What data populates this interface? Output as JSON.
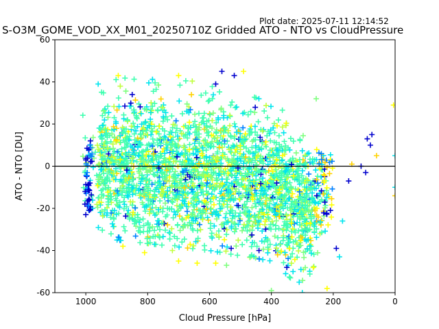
{
  "plot_date": "Plot date: 2025-07-11 12:14:52",
  "title": "S-O3M_GOME_VOD_XX_M01_20250710Z Gridded ATO - NTO vs CloudPressure",
  "chart_data": {
    "type": "scatter",
    "marker": "+",
    "xlabel": "Cloud Pressure [hPa]",
    "ylabel": "ATO - NTO [DU]",
    "xlim": [
      1100,
      0
    ],
    "ylim": [
      -60,
      60
    ],
    "x_inverted": true,
    "xticks": [
      1000,
      800,
      600,
      400,
      200,
      0
    ],
    "yticks": [
      -60,
      -40,
      -20,
      0,
      20,
      40,
      60
    ],
    "zero_line": 0,
    "grid": false,
    "colormap": [
      "#0000cd",
      "#0080ff",
      "#00e5ee",
      "#40ffb0",
      "#7fff7f",
      "#c0ff3f",
      "#ffff00",
      "#ffd200",
      "#ffb000"
    ],
    "point_cloud": {
      "x_range": [
        1000,
        0
      ],
      "dense_region": {
        "x": [
          960,
          220
        ],
        "y": [
          -32,
          32
        ]
      },
      "spread_at_1000": [
        -25,
        30
      ],
      "spread_at_900": [
        -35,
        42
      ],
      "spread_at_600": [
        -40,
        40
      ],
      "spread_at_400": [
        -45,
        30
      ],
      "spread_at_300": [
        -58,
        25
      ],
      "spread_at_200": [
        -30,
        12
      ]
    },
    "sparse_points": [
      {
        "x": 560,
        "y": 45,
        "c": "#0000cd"
      },
      {
        "x": 520,
        "y": 43,
        "c": "#0000cd"
      },
      {
        "x": 490,
        "y": 45,
        "c": "#ffff00"
      },
      {
        "x": 580,
        "y": 39,
        "c": "#0000cd"
      },
      {
        "x": 700,
        "y": 43,
        "c": "#ffff00"
      },
      {
        "x": 895,
        "y": 43,
        "c": "#ffff00"
      },
      {
        "x": 850,
        "y": 34,
        "c": "#0000cd"
      },
      {
        "x": 255,
        "y": 32,
        "c": "#7fff7f"
      },
      {
        "x": 75,
        "y": 15,
        "c": "#0000cd"
      },
      {
        "x": 90,
        "y": 13,
        "c": "#0000cd"
      },
      {
        "x": 80,
        "y": 10,
        "c": "#0000cd"
      },
      {
        "x": 60,
        "y": 5,
        "c": "#ffd200"
      },
      {
        "x": 110,
        "y": 0,
        "c": "#0000cd"
      },
      {
        "x": 140,
        "y": 1,
        "c": "#ffd200"
      },
      {
        "x": 5,
        "y": 29,
        "c": "#ffff00"
      },
      {
        "x": 0,
        "y": 5,
        "c": "#00e5ee"
      },
      {
        "x": 0,
        "y": -10,
        "c": "#00e5ee"
      },
      {
        "x": 0,
        "y": -14,
        "c": "#ffd200"
      },
      {
        "x": 95,
        "y": -3,
        "c": "#0000cd"
      },
      {
        "x": 150,
        "y": -7,
        "c": "#0000cd"
      },
      {
        "x": 170,
        "y": -26,
        "c": "#00e5ee"
      },
      {
        "x": 190,
        "y": -39,
        "c": "#0000cd"
      },
      {
        "x": 180,
        "y": -43,
        "c": "#00e5ee"
      },
      {
        "x": 220,
        "y": -58,
        "c": "#ffff00"
      },
      {
        "x": 300,
        "y": -60,
        "c": "#00e5ee"
      },
      {
        "x": 310,
        "y": -55,
        "c": "#00e5ee"
      },
      {
        "x": 330,
        "y": -50,
        "c": "#00e5ee"
      },
      {
        "x": 350,
        "y": -48,
        "c": "#0000cd"
      },
      {
        "x": 380,
        "y": -42,
        "c": "#ffd200"
      },
      {
        "x": 400,
        "y": -59,
        "c": "#7fff7f"
      },
      {
        "x": 440,
        "y": -40,
        "c": "#0000cd"
      },
      {
        "x": 530,
        "y": -39,
        "c": "#0000cd"
      },
      {
        "x": 545,
        "y": -47,
        "c": "#7fff7f"
      },
      {
        "x": 580,
        "y": -46,
        "c": "#ffff00"
      },
      {
        "x": 640,
        "y": -46,
        "c": "#ffff00"
      },
      {
        "x": 700,
        "y": -45,
        "c": "#ffff00"
      },
      {
        "x": 720,
        "y": -40,
        "c": "#c0ff3f"
      },
      {
        "x": 810,
        "y": -41,
        "c": "#ffff00"
      },
      {
        "x": 880,
        "y": -38,
        "c": "#ffff00"
      },
      {
        "x": 1000,
        "y": -23,
        "c": "#0000cd"
      },
      {
        "x": 1003,
        "y": -18,
        "c": "#0000cd"
      },
      {
        "x": 1002,
        "y": -12,
        "c": "#0000cd"
      },
      {
        "x": 1000,
        "y": 3,
        "c": "#0000cd"
      },
      {
        "x": 990,
        "y": 8,
        "c": "#0000cd"
      },
      {
        "x": 985,
        "y": 12,
        "c": "#0000cd"
      },
      {
        "x": 960,
        "y": 39,
        "c": "#00e5ee"
      }
    ]
  }
}
